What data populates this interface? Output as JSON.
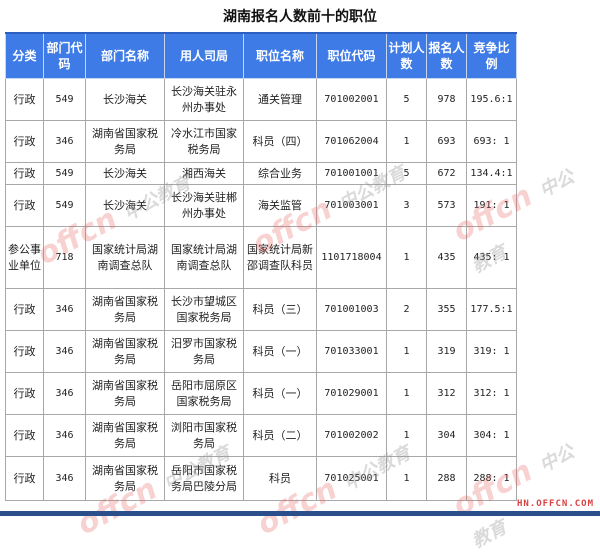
{
  "title": "湖南报名人数前十的职位",
  "headers": [
    "分类",
    "部门代码",
    "部门名称",
    "用人司局",
    "职位名称",
    "职位代码",
    "计划人数",
    "报名人数",
    "竞争比例"
  ],
  "rows": [
    [
      "行政",
      "549",
      "长沙海关",
      "长沙海关驻永州办事处",
      "通关管理",
      "701002001",
      "5",
      "978",
      "195.6:1"
    ],
    [
      "行政",
      "346",
      "湖南省国家税务局",
      "冷水江市国家税务局",
      "科员（四）",
      "701062004",
      "1",
      "693",
      "693: 1"
    ],
    [
      "行政",
      "549",
      "长沙海关",
      "湘西海关",
      "综合业务",
      "701001001",
      "5",
      "672",
      "134.4:1"
    ],
    [
      "行政",
      "549",
      "长沙海关",
      "长沙海关驻郴州办事处",
      "海关监管",
      "701003001",
      "3",
      "573",
      "191: 1"
    ],
    [
      "参公事业单位",
      "718",
      "国家统计局湖南调查总队",
      "国家统计局湖南调查总队",
      "国家统计局新邵调查队科员",
      "1101718004",
      "1",
      "435",
      "435: 1"
    ],
    [
      "行政",
      "346",
      "湖南省国家税务局",
      "长沙市望城区国家税务局",
      "科员（三）",
      "701001003",
      "2",
      "355",
      "177.5:1"
    ],
    [
      "行政",
      "346",
      "湖南省国家税务局",
      "汨罗市国家税务局",
      "科员（一）",
      "701033001",
      "1",
      "319",
      "319: 1"
    ],
    [
      "行政",
      "346",
      "湖南省国家税务局",
      "岳阳市屈原区国家税务局",
      "科员（一）",
      "701029001",
      "1",
      "312",
      "312: 1"
    ],
    [
      "行政",
      "346",
      "湖南省国家税务局",
      "浏阳市国家税务局",
      "科员（二）",
      "701002002",
      "1",
      "304",
      "304: 1"
    ],
    [
      "行政",
      "346",
      "湖南省国家税务局",
      "岳阳市国家税务局巴陵分局",
      "科员",
      "701025001",
      "1",
      "288",
      "288: 1"
    ]
  ],
  "watermark": {
    "logo": "offcn",
    "text": "中公教育",
    "site": "HN.OFFCN.COM"
  },
  "colors": {
    "header": "#3e7be6",
    "watermark": "#e65a5a"
  }
}
